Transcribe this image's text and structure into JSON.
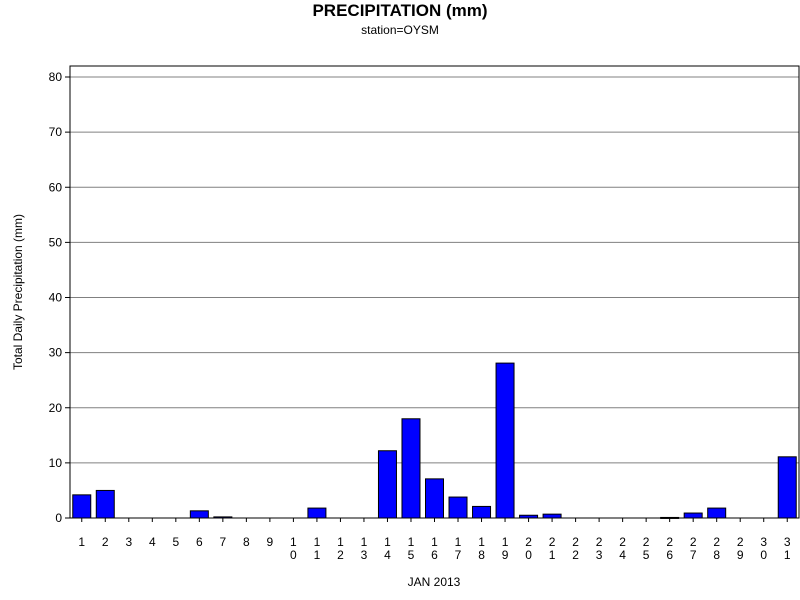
{
  "chart_data": {
    "type": "bar",
    "title": "PRECIPITATION (mm)",
    "subtitle": "station=OYSM",
    "xlabel": "JAN 2013",
    "ylabel": "Total Daily Precipitation (mm)",
    "ylim": [
      0,
      80
    ],
    "yticks": [
      "0",
      "10",
      "20",
      "30",
      "40",
      "50",
      "60",
      "70",
      "80"
    ],
    "grid": true,
    "categories": [
      "1",
      "2",
      "3",
      "4",
      "5",
      "6",
      "7",
      "8",
      "9",
      "10",
      "11",
      "12",
      "13",
      "14",
      "15",
      "16",
      "17",
      "18",
      "19",
      "20",
      "21",
      "22",
      "23",
      "24",
      "25",
      "26",
      "27",
      "28",
      "29",
      "30",
      "31"
    ],
    "values": [
      4.2,
      5.0,
      0,
      0,
      0,
      1.3,
      0.2,
      0,
      0,
      0,
      1.8,
      0,
      0,
      12.2,
      18.0,
      7.1,
      3.8,
      2.1,
      28.1,
      0.5,
      0.7,
      0,
      0,
      0,
      0,
      0.1,
      0.9,
      1.8,
      0,
      0,
      11.1
    ],
    "bar_color": "#0000ff"
  }
}
